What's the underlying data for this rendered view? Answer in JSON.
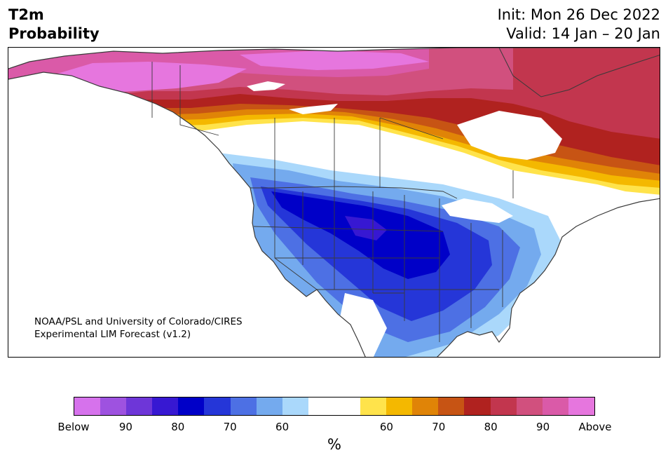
{
  "title": {
    "variable": "T2m",
    "kind": "Probability",
    "init": "Init: Mon 26 Dec 2022",
    "valid": "Valid: 14 Jan – 20 Jan"
  },
  "credit": {
    "line1": "NOAA/PSL and University of Colorado/CIRES",
    "line2": "Experimental LIM Forecast (v1.2)"
  },
  "colorbar": {
    "unit": "%",
    "below_colors": [
      "#d672ec",
      "#9e52e0",
      "#6e36d8",
      "#3718d2",
      "#0000c8",
      "#2536d8",
      "#4d70e4",
      "#74aaee",
      "#aad8fb"
    ],
    "neutral_color": "#ffffff",
    "above_colors": [
      "#ffe34b",
      "#f4b800",
      "#e08407",
      "#c75414",
      "#b0221f",
      "#c2364e",
      "#d1507e",
      "#da5aa8",
      "#e676de"
    ],
    "tick_labels": [
      "Below",
      "90",
      "80",
      "70",
      "60",
      "60",
      "70",
      "80",
      "90",
      "Above"
    ]
  }
}
